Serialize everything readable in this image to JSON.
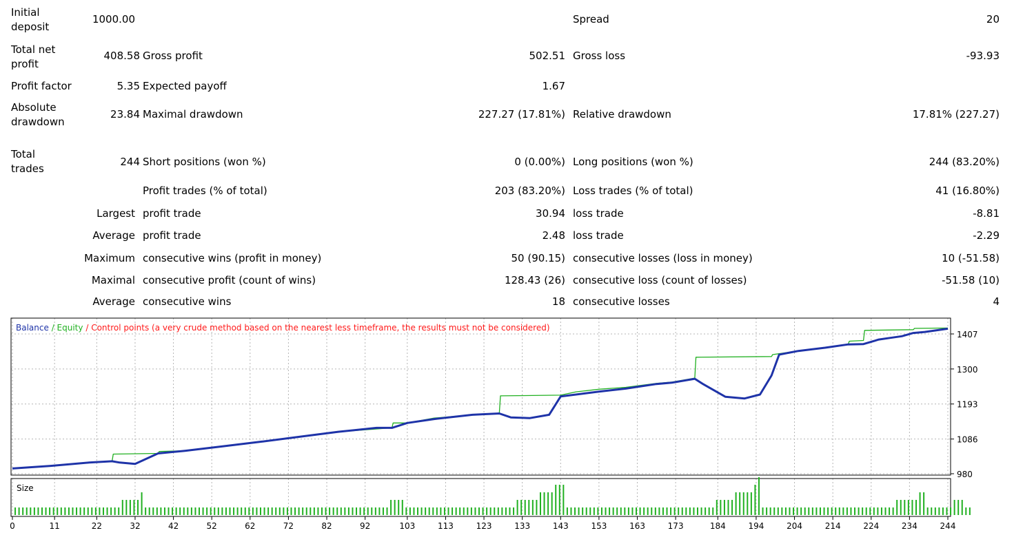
{
  "report": {
    "initial_deposit_label": "Initial deposit",
    "initial_deposit_value": "1000.00",
    "spread_label": "Spread",
    "spread_value": "20",
    "total_net_profit_label": "Total net profit",
    "total_net_profit_value": "408.58",
    "gross_profit_label": "Gross profit",
    "gross_profit_value": "502.51",
    "gross_loss_label": "Gross loss",
    "gross_loss_value": "-93.93",
    "profit_factor_label": "Profit factor",
    "profit_factor_value": "5.35",
    "expected_payoff_label": "Expected payoff",
    "expected_payoff_value": "1.67",
    "absolute_drawdown_label": "Absolute drawdown",
    "absolute_drawdown_value": "23.84",
    "maximal_drawdown_label": "Maximal drawdown",
    "maximal_drawdown_value": "227.27 (17.81%)",
    "relative_drawdown_label": "Relative drawdown",
    "relative_drawdown_value": "17.81% (227.27)",
    "total_trades_label": "Total trades",
    "total_trades_value": "244",
    "short_positions_label": "Short positions (won %)",
    "short_positions_value": "0 (0.00%)",
    "long_positions_label": "Long positions (won %)",
    "long_positions_value": "244 (83.20%)",
    "profit_trades_label": "Profit trades (% of total)",
    "profit_trades_value": "203 (83.20%)",
    "loss_trades_label": "Loss trades (% of total)",
    "loss_trades_value": "41 (16.80%)",
    "largest_label": "Largest",
    "largest_profit_trade_label": "profit trade",
    "largest_profit_trade_value": "30.94",
    "largest_loss_trade_label": "loss trade",
    "largest_loss_trade_value": "-8.81",
    "average_label": "Average",
    "average_profit_trade_label": "profit trade",
    "average_profit_trade_value": "2.48",
    "average_loss_trade_label": "loss trade",
    "average_loss_trade_value": "-2.29",
    "maximum_label": "Maximum",
    "max_consecutive_wins_label": "consecutive wins (profit in money)",
    "max_consecutive_wins_value": "50 (90.15)",
    "max_consecutive_losses_label": "consecutive losses (loss in money)",
    "max_consecutive_losses_value": "10 (-51.58)",
    "maximal_label": "Maximal",
    "maximal_consecutive_profit_label": "consecutive profit (count of wins)",
    "maximal_consecutive_profit_value": "128.43 (26)",
    "maximal_consecutive_loss_label": "consecutive loss (count of losses)",
    "maximal_consecutive_loss_value": "-51.58 (10)",
    "average2_label": "Average",
    "avg_consecutive_wins_label": "consecutive wins",
    "avg_consecutive_wins_value": "18",
    "avg_consecutive_losses_label": "consecutive losses",
    "avg_consecutive_losses_value": "4"
  },
  "chart_data": {
    "type": "line",
    "legend": {
      "balance": "Balance",
      "sep1": " / ",
      "equity": "Equity",
      "sep2": " / ",
      "control": "Control points (a very crude method based on the nearest less timeframe, the results must not be considered)"
    },
    "colors": {
      "balance": "#1e33a8",
      "equity": "#20b020",
      "control": "#ff1a1a",
      "size": "#20b020",
      "grid": "#b4b4b4"
    },
    "size_label": "Size",
    "y_ticks": [
      980,
      1086,
      1193,
      1300,
      1407
    ],
    "x_ticks": [
      0,
      11,
      22,
      32,
      42,
      52,
      62,
      72,
      82,
      92,
      103,
      113,
      123,
      133,
      143,
      153,
      163,
      173,
      184,
      194,
      204,
      214,
      224,
      234,
      244
    ],
    "ylim": [
      980,
      1407
    ],
    "xlim": [
      0,
      244
    ],
    "series": [
      {
        "name": "Balance",
        "x": [
          0,
          10,
          20,
          26,
          28,
          32,
          38,
          45,
          55,
          65,
          75,
          85,
          95,
          99,
          103,
          110,
          120,
          127,
          130,
          135,
          140,
          143,
          147,
          153,
          160,
          168,
          172,
          178,
          180,
          186,
          191,
          195,
          198,
          200,
          205,
          212,
          218,
          222,
          226,
          229,
          232,
          235,
          238,
          244
        ],
        "y": [
          996,
          1004,
          1014,
          1018,
          1014,
          1010,
          1042,
          1050,
          1064,
          1078,
          1093,
          1108,
          1120,
          1120,
          1135,
          1147,
          1160,
          1164,
          1152,
          1150,
          1160,
          1216,
          1222,
          1231,
          1240,
          1254,
          1258,
          1270,
          1255,
          1215,
          1210,
          1222,
          1280,
          1344,
          1355,
          1365,
          1375,
          1376,
          1390,
          1395,
          1400,
          1410,
          1413,
          1423
        ]
      },
      {
        "name": "Equity",
        "x": [
          0,
          26,
          26.3,
          38,
          38.3,
          45,
          55,
          65,
          75,
          85,
          99,
          99.3,
          103,
          110,
          120,
          127,
          127.3,
          143,
          147,
          153,
          160,
          168,
          172,
          178,
          178.3,
          198,
          198.3,
          205,
          212,
          218,
          218.3,
          222,
          222.3,
          235,
          235.3,
          244
        ],
        "y": [
          996,
          1018,
          1040,
          1042,
          1048,
          1050,
          1064,
          1078,
          1093,
          1108,
          1120,
          1135,
          1135,
          1150,
          1160,
          1164,
          1218,
          1220,
          1230,
          1238,
          1244,
          1256,
          1260,
          1272,
          1336,
          1338,
          1344,
          1355,
          1365,
          1375,
          1385,
          1387,
          1418,
          1420,
          1424,
          1425
        ]
      }
    ],
    "size_bars_note": "one bar per trade; values are lots",
    "size_values": [
      1,
      1,
      1,
      1,
      1,
      1,
      1,
      1,
      1,
      1,
      1,
      1,
      1,
      1,
      1,
      1,
      1,
      1,
      1,
      1,
      1,
      1,
      1,
      1,
      1,
      1,
      1,
      1,
      2,
      2,
      2,
      2,
      2,
      3,
      1,
      1,
      1,
      1,
      1,
      1,
      1,
      1,
      1,
      1,
      1,
      1,
      1,
      1,
      1,
      1,
      1,
      1,
      1,
      1,
      1,
      1,
      1,
      1,
      1,
      1,
      1,
      1,
      1,
      1,
      1,
      1,
      1,
      1,
      1,
      1,
      1,
      1,
      1,
      1,
      1,
      1,
      1,
      1,
      1,
      1,
      1,
      1,
      1,
      1,
      1,
      1,
      1,
      1,
      1,
      1,
      1,
      1,
      1,
      1,
      1,
      1,
      1,
      1,
      2,
      2,
      2,
      2,
      1,
      1,
      1,
      1,
      1,
      1,
      1,
      1,
      1,
      1,
      1,
      1,
      1,
      1,
      1,
      1,
      1,
      1,
      1,
      1,
      1,
      1,
      1,
      1,
      1,
      1,
      1,
      1,
      1,
      2,
      2,
      2,
      2,
      2,
      2,
      3,
      3,
      3,
      3,
      4,
      4,
      4,
      1,
      1,
      1,
      1,
      1,
      1,
      1,
      1,
      1,
      1,
      1,
      1,
      1,
      1,
      1,
      1,
      1,
      1,
      1,
      1,
      1,
      1,
      1,
      1,
      1,
      1,
      1,
      1,
      1,
      1,
      1,
      1,
      1,
      1,
      1,
      1,
      1,
      1,
      1,
      2,
      2,
      2,
      2,
      2,
      3,
      3,
      3,
      3,
      3,
      4,
      5,
      1,
      1,
      1,
      1,
      1,
      1,
      1,
      1,
      1,
      1,
      1,
      1,
      1,
      1,
      1,
      1,
      1,
      1,
      1,
      1,
      1,
      1,
      1,
      1,
      1,
      1,
      1,
      1,
      1,
      1,
      1,
      1,
      1,
      1,
      1,
      2,
      2,
      2,
      2,
      2,
      2,
      3,
      3,
      1,
      1,
      1,
      1,
      1,
      1,
      1,
      2,
      2,
      2,
      1,
      1
    ]
  }
}
